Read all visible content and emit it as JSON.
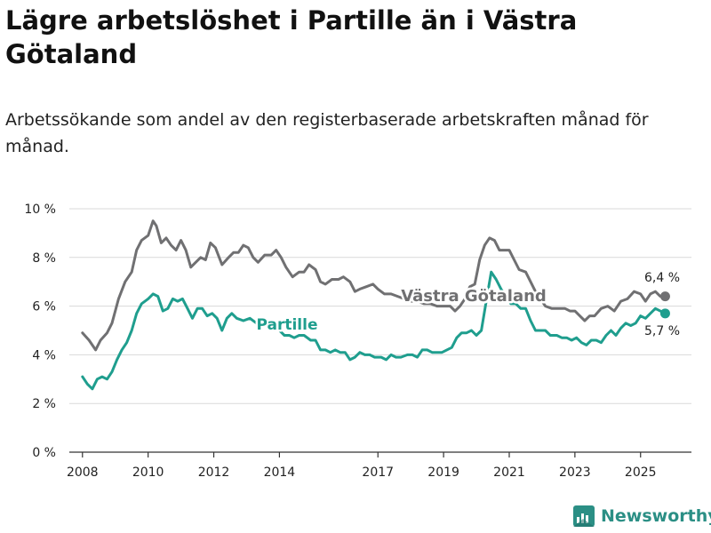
{
  "header": {
    "title": "Lägre arbetslöshet i Partille än i Västra Götaland",
    "subtitle": "Arbetssökande som andel av den registerbaserade arbetskraften månad för månad."
  },
  "brand": {
    "name": "Newsworthy"
  },
  "chart_data": {
    "type": "line",
    "title": "Lägre arbetslöshet i Partille än i Västra Götaland",
    "ylabel": "",
    "xlabel": "",
    "ylim": [
      0,
      10
    ],
    "xlim": [
      2007.6,
      2026.55
    ],
    "yticks": [
      0,
      2,
      4,
      6,
      8,
      10
    ],
    "ytick_labels": [
      "0 %",
      "2 %",
      "4 %",
      "6 %",
      "8 %",
      "10 %"
    ],
    "xticks": [
      2008,
      2010,
      2012,
      2014,
      2017,
      2019,
      2021,
      2023,
      2025
    ],
    "xtick_labels": [
      "2008",
      "2010",
      "2012",
      "2014",
      "2017",
      "2019",
      "2021",
      "2023",
      "2025"
    ],
    "grid": true,
    "colors": {
      "vg": "#707072",
      "partille": "#1f9e8e",
      "grid": "#d9d9d9",
      "axis": "#333333"
    },
    "series": [
      {
        "name": "Västra Götaland",
        "label": "Västra Götaland",
        "color": "#707072",
        "end_label": "6,4 %",
        "end_value": 6.4,
        "points": [
          [
            2008.0,
            4.9
          ],
          [
            2008.2,
            4.6
          ],
          [
            2008.4,
            4.2
          ],
          [
            2008.55,
            4.6
          ],
          [
            2008.75,
            4.9
          ],
          [
            2008.9,
            5.3
          ],
          [
            2009.1,
            6.3
          ],
          [
            2009.3,
            7.0
          ],
          [
            2009.5,
            7.4
          ],
          [
            2009.65,
            8.3
          ],
          [
            2009.8,
            8.7
          ],
          [
            2010.0,
            8.9
          ],
          [
            2010.15,
            9.5
          ],
          [
            2010.25,
            9.3
          ],
          [
            2010.4,
            8.6
          ],
          [
            2010.55,
            8.8
          ],
          [
            2010.7,
            8.5
          ],
          [
            2010.85,
            8.3
          ],
          [
            2011.0,
            8.7
          ],
          [
            2011.15,
            8.3
          ],
          [
            2011.3,
            7.6
          ],
          [
            2011.45,
            7.8
          ],
          [
            2011.6,
            8.0
          ],
          [
            2011.75,
            7.9
          ],
          [
            2011.9,
            8.6
          ],
          [
            2012.05,
            8.4
          ],
          [
            2012.25,
            7.7
          ],
          [
            2012.45,
            8.0
          ],
          [
            2012.6,
            8.2
          ],
          [
            2012.75,
            8.2
          ],
          [
            2012.9,
            8.5
          ],
          [
            2013.05,
            8.4
          ],
          [
            2013.2,
            8.0
          ],
          [
            2013.35,
            7.8
          ],
          [
            2013.55,
            8.1
          ],
          [
            2013.75,
            8.1
          ],
          [
            2013.9,
            8.3
          ],
          [
            2014.05,
            8.0
          ],
          [
            2014.2,
            7.6
          ],
          [
            2014.4,
            7.2
          ],
          [
            2014.6,
            7.4
          ],
          [
            2014.75,
            7.4
          ],
          [
            2014.9,
            7.7
          ],
          [
            2015.1,
            7.5
          ],
          [
            2015.25,
            7.0
          ],
          [
            2015.4,
            6.9
          ],
          [
            2015.6,
            7.1
          ],
          [
            2015.8,
            7.1
          ],
          [
            2015.95,
            7.2
          ],
          [
            2016.15,
            7.0
          ],
          [
            2016.3,
            6.6
          ],
          [
            2016.45,
            6.7
          ],
          [
            2016.65,
            6.8
          ],
          [
            2016.85,
            6.9
          ],
          [
            2017.0,
            6.7
          ],
          [
            2017.2,
            6.5
          ],
          [
            2017.4,
            6.5
          ],
          [
            2017.6,
            6.4
          ],
          [
            2017.8,
            6.3
          ],
          [
            2018.0,
            6.2
          ],
          [
            2018.2,
            6.2
          ],
          [
            2018.4,
            6.1
          ],
          [
            2018.6,
            6.1
          ],
          [
            2018.8,
            6.0
          ],
          [
            2019.0,
            6.0
          ],
          [
            2019.2,
            6.0
          ],
          [
            2019.35,
            5.8
          ],
          [
            2019.5,
            6.0
          ],
          [
            2019.65,
            6.3
          ],
          [
            2019.8,
            6.8
          ],
          [
            2019.95,
            6.9
          ],
          [
            2020.1,
            7.9
          ],
          [
            2020.25,
            8.5
          ],
          [
            2020.4,
            8.8
          ],
          [
            2020.55,
            8.7
          ],
          [
            2020.7,
            8.3
          ],
          [
            2020.85,
            8.3
          ],
          [
            2021.0,
            8.3
          ],
          [
            2021.15,
            7.9
          ],
          [
            2021.3,
            7.5
          ],
          [
            2021.5,
            7.4
          ],
          [
            2021.65,
            7.0
          ],
          [
            2021.8,
            6.6
          ],
          [
            2021.95,
            6.3
          ],
          [
            2022.1,
            6.0
          ],
          [
            2022.3,
            5.9
          ],
          [
            2022.5,
            5.9
          ],
          [
            2022.7,
            5.9
          ],
          [
            2022.85,
            5.8
          ],
          [
            2023.0,
            5.8
          ],
          [
            2023.15,
            5.6
          ],
          [
            2023.3,
            5.4
          ],
          [
            2023.45,
            5.6
          ],
          [
            2023.6,
            5.6
          ],
          [
            2023.8,
            5.9
          ],
          [
            2024.0,
            6.0
          ],
          [
            2024.2,
            5.8
          ],
          [
            2024.4,
            6.2
          ],
          [
            2024.6,
            6.3
          ],
          [
            2024.8,
            6.6
          ],
          [
            2025.0,
            6.5
          ],
          [
            2025.15,
            6.2
          ],
          [
            2025.3,
            6.5
          ],
          [
            2025.45,
            6.6
          ],
          [
            2025.6,
            6.4
          ],
          [
            2025.75,
            6.4
          ]
        ]
      },
      {
        "name": "Partille",
        "label": "Partille",
        "color": "#1f9e8e",
        "end_label": "5,7 %",
        "end_value": 5.7,
        "points": [
          [
            2008.0,
            3.1
          ],
          [
            2008.15,
            2.8
          ],
          [
            2008.3,
            2.6
          ],
          [
            2008.45,
            3.0
          ],
          [
            2008.6,
            3.1
          ],
          [
            2008.75,
            3.0
          ],
          [
            2008.9,
            3.3
          ],
          [
            2009.05,
            3.8
          ],
          [
            2009.2,
            4.2
          ],
          [
            2009.35,
            4.5
          ],
          [
            2009.5,
            5.0
          ],
          [
            2009.65,
            5.7
          ],
          [
            2009.8,
            6.1
          ],
          [
            2010.0,
            6.3
          ],
          [
            2010.15,
            6.5
          ],
          [
            2010.3,
            6.4
          ],
          [
            2010.45,
            5.8
          ],
          [
            2010.6,
            5.9
          ],
          [
            2010.75,
            6.3
          ],
          [
            2010.9,
            6.2
          ],
          [
            2011.05,
            6.3
          ],
          [
            2011.2,
            5.9
          ],
          [
            2011.35,
            5.5
          ],
          [
            2011.5,
            5.9
          ],
          [
            2011.65,
            5.9
          ],
          [
            2011.8,
            5.6
          ],
          [
            2011.95,
            5.7
          ],
          [
            2012.1,
            5.5
          ],
          [
            2012.25,
            5.0
          ],
          [
            2012.4,
            5.5
          ],
          [
            2012.55,
            5.7
          ],
          [
            2012.7,
            5.5
          ],
          [
            2012.9,
            5.4
          ],
          [
            2013.1,
            5.5
          ],
          [
            2013.3,
            5.3
          ],
          [
            2013.5,
            5.4
          ],
          [
            2013.7,
            5.4
          ],
          [
            2013.85,
            5.2
          ],
          [
            2014.0,
            5.0
          ],
          [
            2014.15,
            4.8
          ],
          [
            2014.3,
            4.8
          ],
          [
            2014.45,
            4.7
          ],
          [
            2014.6,
            4.8
          ],
          [
            2014.75,
            4.8
          ],
          [
            2014.95,
            4.6
          ],
          [
            2015.1,
            4.6
          ],
          [
            2015.25,
            4.2
          ],
          [
            2015.4,
            4.2
          ],
          [
            2015.55,
            4.1
          ],
          [
            2015.7,
            4.2
          ],
          [
            2015.85,
            4.1
          ],
          [
            2016.0,
            4.1
          ],
          [
            2016.15,
            3.8
          ],
          [
            2016.3,
            3.9
          ],
          [
            2016.45,
            4.1
          ],
          [
            2016.6,
            4.0
          ],
          [
            2016.75,
            4.0
          ],
          [
            2016.9,
            3.9
          ],
          [
            2017.1,
            3.9
          ],
          [
            2017.25,
            3.8
          ],
          [
            2017.4,
            4.0
          ],
          [
            2017.55,
            3.9
          ],
          [
            2017.7,
            3.9
          ],
          [
            2017.9,
            4.0
          ],
          [
            2018.05,
            4.0
          ],
          [
            2018.2,
            3.9
          ],
          [
            2018.35,
            4.2
          ],
          [
            2018.5,
            4.2
          ],
          [
            2018.65,
            4.1
          ],
          [
            2018.8,
            4.1
          ],
          [
            2018.95,
            4.1
          ],
          [
            2019.1,
            4.2
          ],
          [
            2019.25,
            4.3
          ],
          [
            2019.4,
            4.7
          ],
          [
            2019.55,
            4.9
          ],
          [
            2019.7,
            4.9
          ],
          [
            2019.85,
            5.0
          ],
          [
            2020.0,
            4.8
          ],
          [
            2020.15,
            5.0
          ],
          [
            2020.3,
            6.2
          ],
          [
            2020.45,
            7.4
          ],
          [
            2020.6,
            7.1
          ],
          [
            2020.75,
            6.7
          ],
          [
            2020.9,
            6.4
          ],
          [
            2021.05,
            6.1
          ],
          [
            2021.2,
            6.1
          ],
          [
            2021.35,
            5.9
          ],
          [
            2021.5,
            5.9
          ],
          [
            2021.65,
            5.4
          ],
          [
            2021.8,
            5.0
          ],
          [
            2021.95,
            5.0
          ],
          [
            2022.1,
            5.0
          ],
          [
            2022.25,
            4.8
          ],
          [
            2022.45,
            4.8
          ],
          [
            2022.6,
            4.7
          ],
          [
            2022.75,
            4.7
          ],
          [
            2022.9,
            4.6
          ],
          [
            2023.05,
            4.7
          ],
          [
            2023.2,
            4.5
          ],
          [
            2023.35,
            4.4
          ],
          [
            2023.5,
            4.6
          ],
          [
            2023.65,
            4.6
          ],
          [
            2023.8,
            4.5
          ],
          [
            2023.95,
            4.8
          ],
          [
            2024.1,
            5.0
          ],
          [
            2024.25,
            4.8
          ],
          [
            2024.4,
            5.1
          ],
          [
            2024.55,
            5.3
          ],
          [
            2024.7,
            5.2
          ],
          [
            2024.85,
            5.3
          ],
          [
            2025.0,
            5.6
          ],
          [
            2025.15,
            5.5
          ],
          [
            2025.3,
            5.7
          ],
          [
            2025.45,
            5.9
          ],
          [
            2025.6,
            5.8
          ],
          [
            2025.75,
            5.7
          ]
        ]
      }
    ]
  }
}
